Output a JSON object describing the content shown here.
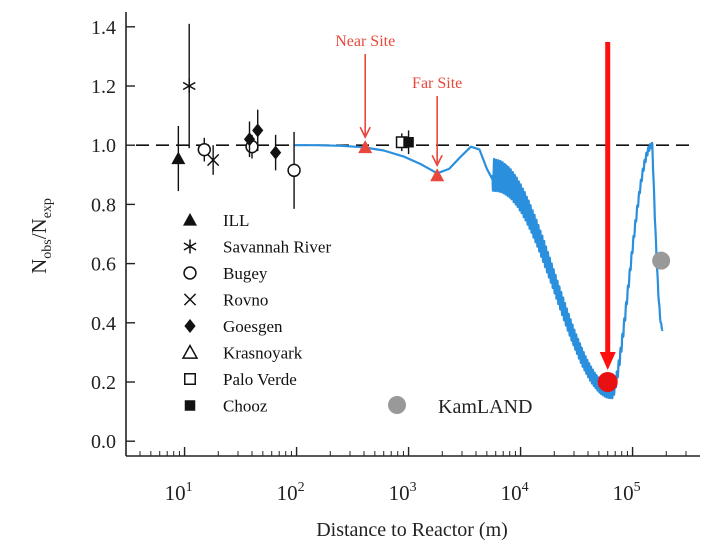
{
  "chart_data": {
    "type": "scatter",
    "xlabel": "Distance to Reactor (m)",
    "ylabel_main": "N",
    "ylabel_sub1": "obs",
    "ylabel_sep": "/N",
    "ylabel_sub2": "exp",
    "x_scale": "log",
    "xlim": [
      3,
      400000
    ],
    "ylim": [
      -0.05,
      1.45
    ],
    "y_ticks": [
      "0.0",
      "0.2",
      "0.4",
      "0.6",
      "0.8",
      "1.0",
      "1.2",
      "1.4"
    ],
    "x_ticks": [
      {
        "value": 10,
        "base": "10",
        "exp": "1"
      },
      {
        "value": 100,
        "base": "10",
        "exp": "2"
      },
      {
        "value": 1000,
        "base": "10",
        "exp": "3"
      },
      {
        "value": 10000,
        "base": "10",
        "exp": "4"
      },
      {
        "value": 100000,
        "base": "10",
        "exp": "5"
      }
    ],
    "reference_line": 1.0,
    "legend": [
      {
        "label": "ILL",
        "marker": "filled-triangle"
      },
      {
        "label": "Savannah River",
        "marker": "asterisk"
      },
      {
        "label": "Bugey",
        "marker": "open-circle"
      },
      {
        "label": "Rovno",
        "marker": "cross"
      },
      {
        "label": "Goesgen",
        "marker": "filled-diamond"
      },
      {
        "label": "Krasnoyark",
        "marker": "open-triangle"
      },
      {
        "label": "Palo Verde",
        "marker": "open-square"
      },
      {
        "label": "Chooz",
        "marker": "filled-square"
      }
    ],
    "experiments": [
      {
        "marker": "filled-triangle",
        "x": 8.8,
        "y": 0.955,
        "err": 0.11
      },
      {
        "marker": "asterisk",
        "x": 11,
        "y": 1.2,
        "err": 0.21
      },
      {
        "marker": "open-circle",
        "x": 15,
        "y": 0.985,
        "err": 0.04
      },
      {
        "marker": "cross",
        "x": 18,
        "y": 0.95,
        "err": 0.05
      },
      {
        "marker": "open-circle",
        "x": 40,
        "y": 0.995,
        "err": 0.04
      },
      {
        "marker": "filled-diamond",
        "x": 38,
        "y": 1.02,
        "err": 0.06
      },
      {
        "marker": "filled-diamond",
        "x": 45,
        "y": 1.05,
        "err": 0.07
      },
      {
        "marker": "filled-diamond",
        "x": 65,
        "y": 0.975,
        "err": 0.06
      },
      {
        "marker": "open-circle",
        "x": 95,
        "y": 0.915,
        "err": 0.13
      },
      {
        "marker": "open-square",
        "x": 870,
        "y": 1.01,
        "err": 0.03
      },
      {
        "marker": "filled-square",
        "x": 1000,
        "y": 1.01,
        "err": 0.04
      }
    ],
    "kamland": {
      "label": "KamLAND",
      "x": 180000,
      "y": 0.61,
      "color": "#999999"
    },
    "sites": [
      {
        "label": "Near Site",
        "x": 410,
        "y": 0.99
      },
      {
        "label": "Far Site",
        "x": 1800,
        "y": 0.895
      }
    ],
    "highlight": {
      "x": 60000,
      "y": 0.2
    },
    "oscillation_curve": [
      [
        95,
        1.0
      ],
      [
        150,
        1.0
      ],
      [
        250,
        0.998
      ],
      [
        400,
        0.993
      ],
      [
        600,
        0.982
      ],
      [
        900,
        0.962
      ],
      [
        1300,
        0.935
      ],
      [
        1800,
        0.905
      ],
      [
        2300,
        0.92
      ],
      [
        2900,
        0.96
      ],
      [
        3600,
        0.995
      ],
      [
        4300,
        0.985
      ],
      [
        5000,
        0.92
      ],
      [
        5600,
        0.885
      ]
    ],
    "colors": {
      "curve": "#2a8fdd",
      "sites": "#e8473c",
      "arrow": "#ff1010",
      "highlight": "#e81010",
      "kamland": "#999999",
      "axis": "#222222"
    }
  }
}
